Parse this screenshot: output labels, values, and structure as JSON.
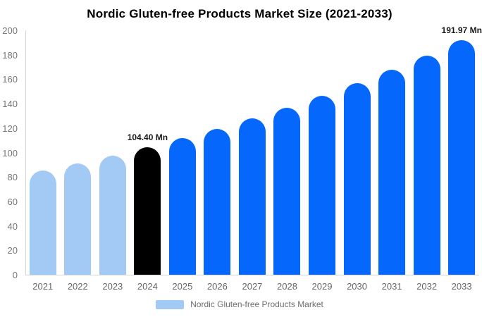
{
  "chart_data": {
    "type": "bar",
    "title": "Nordic Gluten-free Products Market Size (2021-2033)",
    "categories": [
      "2021",
      "2022",
      "2023",
      "2024",
      "2025",
      "2026",
      "2027",
      "2028",
      "2029",
      "2030",
      "2031",
      "2032",
      "2033"
    ],
    "values": [
      85.22,
      91.19,
      97.57,
      104.4,
      111.71,
      119.53,
      127.9,
      136.85,
      146.43,
      156.68,
      167.65,
      179.38,
      191.97
    ],
    "unit": "Mn",
    "xlabel": "",
    "ylabel": "",
    "ylim": [
      0,
      200
    ],
    "yticks": [
      0,
      20,
      40,
      60,
      80,
      100,
      120,
      140,
      160,
      180,
      200
    ],
    "grid": false,
    "bar_colors": [
      "#A2CAF5",
      "#A2CAF5",
      "#A2CAF5",
      "#000000",
      "#0567FB",
      "#0567FB",
      "#0567FB",
      "#0567FB",
      "#0567FB",
      "#0567FB",
      "#0567FB",
      "#0567FB",
      "#0567FB"
    ],
    "annotations": [
      {
        "category": "2024",
        "text": "104.40 Mn"
      },
      {
        "category": "2033",
        "text": "191.97 Mn"
      }
    ],
    "legend": [
      {
        "label": "Nordic Gluten-free Products Market",
        "color": "#A2CAF5"
      }
    ],
    "legend_position": "bottom"
  },
  "colors": {
    "historical_bar": "#A2CAF5",
    "base_year_bar": "#000000",
    "forecast_bar": "#0567FB",
    "y_tick_label": "#757575",
    "x_tick_label": "#666666",
    "legend_text": "#6e6e6e",
    "axis_line": "#d6d6d6",
    "title_text": "#000000",
    "annotation_text": "#1a1a1a"
  }
}
